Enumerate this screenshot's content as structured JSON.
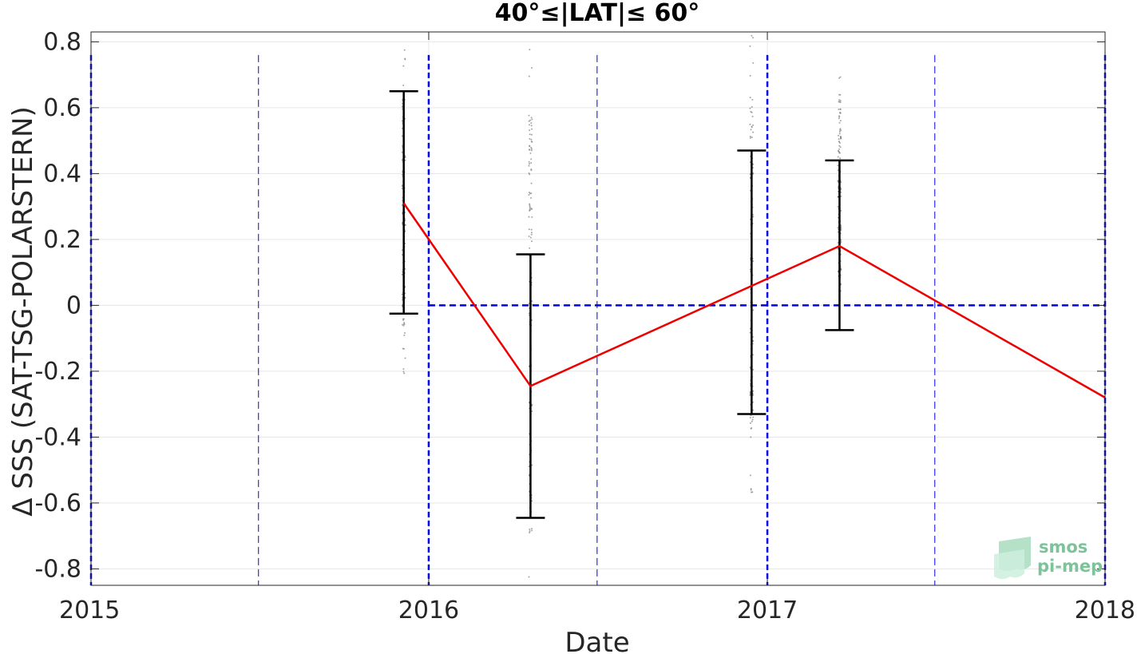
{
  "chart_data": {
    "type": "line",
    "title": "40°≤|LAT|≤ 60°",
    "xlabel": "Date",
    "ylabel": "Δ SSS (SAT-TSG-POLARSTERN)",
    "xlim": [
      "2015-01-01",
      "2018-01-01"
    ],
    "ylim": [
      -0.85,
      0.83
    ],
    "x_ticks": [
      "2015",
      "2016",
      "2017",
      "2018"
    ],
    "y_ticks": [
      0.8,
      0.6,
      0.4,
      0.2,
      0,
      -0.2,
      -0.4,
      -0.6,
      -0.8
    ],
    "grid": true,
    "series": [
      {
        "color": "#ee0000",
        "x": [
          "2015-12-05",
          "2016-04-20",
          "2017-03-20",
          "2018-01-01"
        ],
        "y": [
          0.31,
          -0.245,
          0.18,
          -0.28
        ]
      }
    ],
    "error_bars": {
      "color": "#000000",
      "x": [
        "2015-12-05",
        "2016-04-20",
        "2016-12-15",
        "2017-03-20"
      ],
      "low": [
        -0.025,
        -0.645,
        -0.33,
        -0.075
      ],
      "high": [
        0.65,
        0.155,
        0.47,
        0.44
      ]
    },
    "scatter_clusters": {
      "color": "#7f7f7f",
      "clusters": [
        {
          "x": "2015-12-05",
          "y_min": -0.21,
          "y_max": 0.78
        },
        {
          "x": "2016-04-20",
          "y_min": -0.85,
          "y_max": 0.83
        },
        {
          "x": "2016-12-15",
          "y_min": -0.59,
          "y_max": 0.83
        },
        {
          "x": "2017-03-20",
          "y_min": -0.03,
          "y_max": 0.74
        }
      ]
    },
    "reference_line": {
      "y": 0,
      "x_start": "2016-01-01",
      "color": "#0000dd",
      "style": "dashed"
    },
    "vertical_lines": {
      "color": "#0000ee",
      "major_dates": [
        "2015-01-01",
        "2016-01-01",
        "2017-01-01",
        "2018-01-01"
      ],
      "minor_dates": [
        "2015-07-01",
        "2016-07-01",
        "2017-07-01"
      ]
    }
  },
  "logo": {
    "line1": "smos",
    "line2": "pi-mep"
  }
}
